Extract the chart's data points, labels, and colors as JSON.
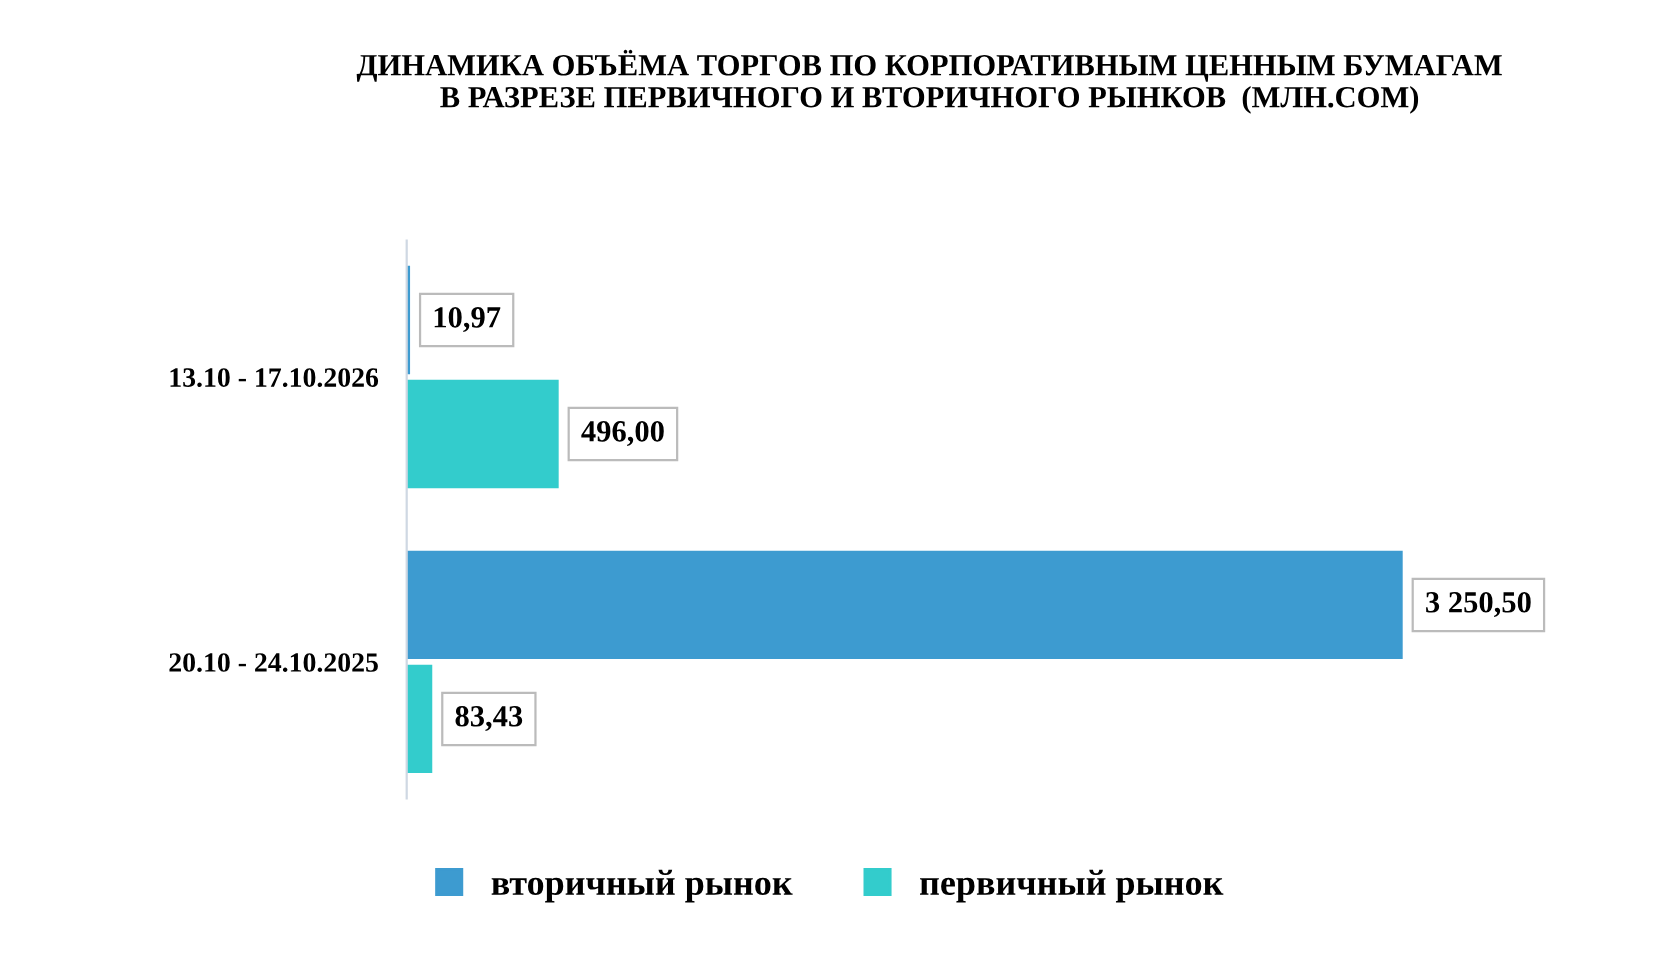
{
  "chart_data": {
    "type": "bar",
    "orientation": "horizontal",
    "title": "ДИНАМИКА ОБЪЁМА ТОРГОВ ПО КОРПОРАТИВНЫМ ЦЕННЫМ БУМАГАМ\nВ РАЗРЕЗЕ ПЕРВИЧНОГО И ВТОРИЧНОГО РЫНКОВ  (МЛН.COM)",
    "categories": [
      "13.10 - 17.10.2026",
      "20.10 - 24.10.2025"
    ],
    "series": [
      {
        "name": "вторичный рынок",
        "color": "#3d9bd0",
        "values": [
          10.97,
          3250.5
        ],
        "value_labels": [
          "10,97",
          "3 250,50"
        ]
      },
      {
        "name": "первичный рынок",
        "color": "#33cccc",
        "values": [
          496.0,
          83.43
        ],
        "value_labels": [
          "496,00",
          "83,43"
        ]
      }
    ],
    "legend": "bottom"
  }
}
